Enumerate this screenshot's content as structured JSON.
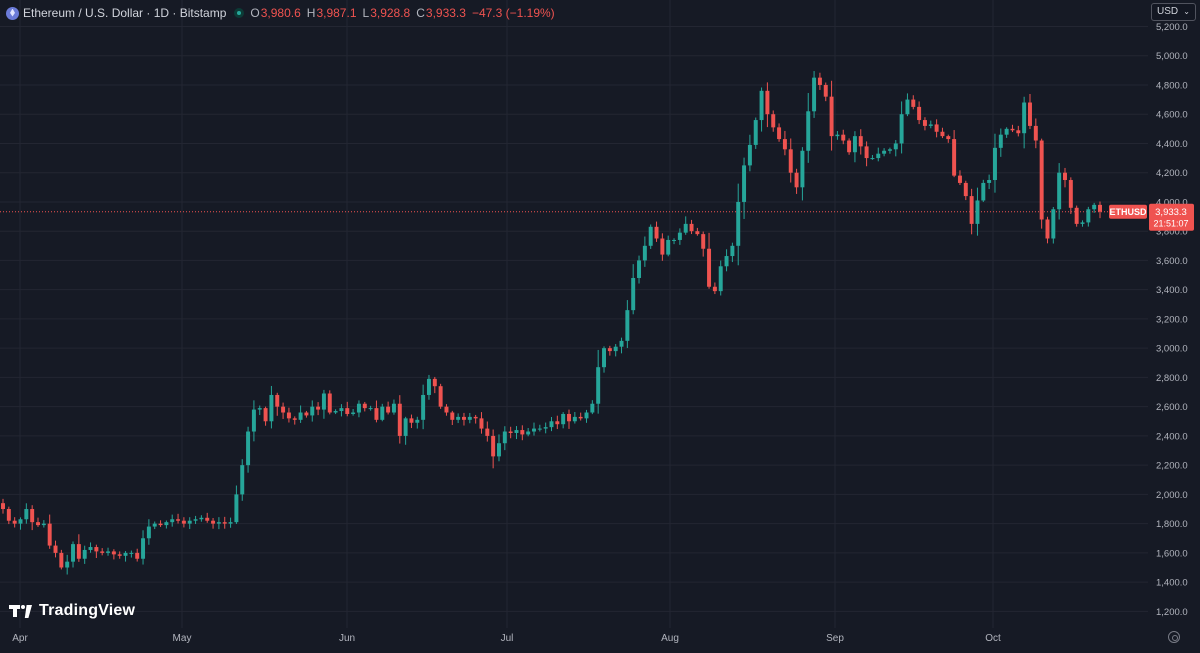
{
  "header": {
    "symbol_title": "Ethereum / U.S. Dollar · 1D · Bitstamp",
    "ohlc": [
      {
        "k": "O",
        "v": "3,980.6"
      },
      {
        "k": "H",
        "v": "3,987.1"
      },
      {
        "k": "L",
        "v": "3,928.8"
      },
      {
        "k": "C",
        "v": "3,933.3"
      }
    ],
    "change": "−47.3 (−1.19%)"
  },
  "currency": {
    "label": "USD"
  },
  "logo": {
    "text": "TradingView"
  },
  "price_tag": {
    "symbol": "ETHUSD",
    "price": "3,933.3",
    "countdown": "21:51:07"
  },
  "colors": {
    "up": "#26a69a",
    "down": "#ef5350",
    "background": "#161a25",
    "grid": "#232632",
    "text": "#b2b5be"
  },
  "chart_data": {
    "type": "candlestick",
    "y_axis_labels": [
      "1,200.0",
      "1,400.0",
      "1,600.0",
      "1,800.0",
      "2,000.0",
      "2,200.0",
      "2,400.0",
      "2,600.0",
      "2,800.0",
      "3,000.0",
      "3,200.0",
      "3,400.0",
      "3,600.0",
      "3,800.0",
      "4,000.0",
      "4,200.0",
      "4,400.0",
      "4,600.0",
      "4,800.0",
      "5,000.0",
      "5,200.0"
    ],
    "y_axis_values": [
      1200,
      1400,
      1600,
      1800,
      2000,
      2200,
      2400,
      2600,
      2800,
      3000,
      3200,
      3400,
      3600,
      3800,
      4000,
      4200,
      4400,
      4600,
      4800,
      5000,
      5200
    ],
    "ylim": [
      1100,
      5340
    ],
    "x_axis_labels": [
      "Apr",
      "May",
      "Jun",
      "Jul",
      "Aug",
      "Sep",
      "Oct"
    ],
    "last_price": 3933.3,
    "grid": true,
    "closes": [
      1900,
      1820,
      1800,
      1830,
      1900,
      1810,
      1790,
      1800,
      1650,
      1600,
      1500,
      1540,
      1660,
      1560,
      1620,
      1640,
      1610,
      1600,
      1610,
      1590,
      1580,
      1600,
      1600,
      1560,
      1700,
      1780,
      1800,
      1790,
      1810,
      1830,
      1820,
      1800,
      1820,
      1830,
      1840,
      1820,
      1800,
      1810,
      1800,
      1810,
      2000,
      2200,
      2430,
      2580,
      2590,
      2500,
      2680,
      2600,
      2560,
      2520,
      2510,
      2560,
      2540,
      2600,
      2580,
      2690,
      2560,
      2570,
      2590,
      2550,
      2560,
      2620,
      2590,
      2590,
      2510,
      2600,
      2560,
      2620,
      2400,
      2520,
      2490,
      2510,
      2680,
      2790,
      2740,
      2600,
      2560,
      2510,
      2530,
      2510,
      2530,
      2520,
      2450,
      2400,
      2260,
      2350,
      2430,
      2420,
      2440,
      2410,
      2430,
      2450,
      2450,
      2460,
      2500,
      2480,
      2550,
      2500,
      2530,
      2520,
      2560,
      2620,
      2870,
      3000,
      2980,
      3010,
      3050,
      3260,
      3480,
      3600,
      3700,
      3830,
      3750,
      3640,
      3740,
      3740,
      3790,
      3850,
      3800,
      3780,
      3680,
      3420,
      3390,
      3560,
      3630,
      3700,
      4000,
      4250,
      4390,
      4560,
      4760,
      4600,
      4510,
      4430,
      4360,
      4200,
      4100,
      4350,
      4620,
      4850,
      4800,
      4720,
      4450,
      4460,
      4420,
      4340,
      4450,
      4380,
      4300,
      4300,
      4330,
      4350,
      4360,
      4400,
      4600,
      4700,
      4650,
      4560,
      4520,
      4530,
      4480,
      4450,
      4430,
      4180,
      4130,
      4040,
      3850,
      4010,
      4130,
      4150,
      4370,
      4460,
      4500,
      4490,
      4470,
      4680,
      4520,
      4420,
      3880,
      3750,
      3950,
      4200,
      4150,
      3960,
      3850,
      3860,
      3950,
      3980,
      3933.3
    ]
  }
}
